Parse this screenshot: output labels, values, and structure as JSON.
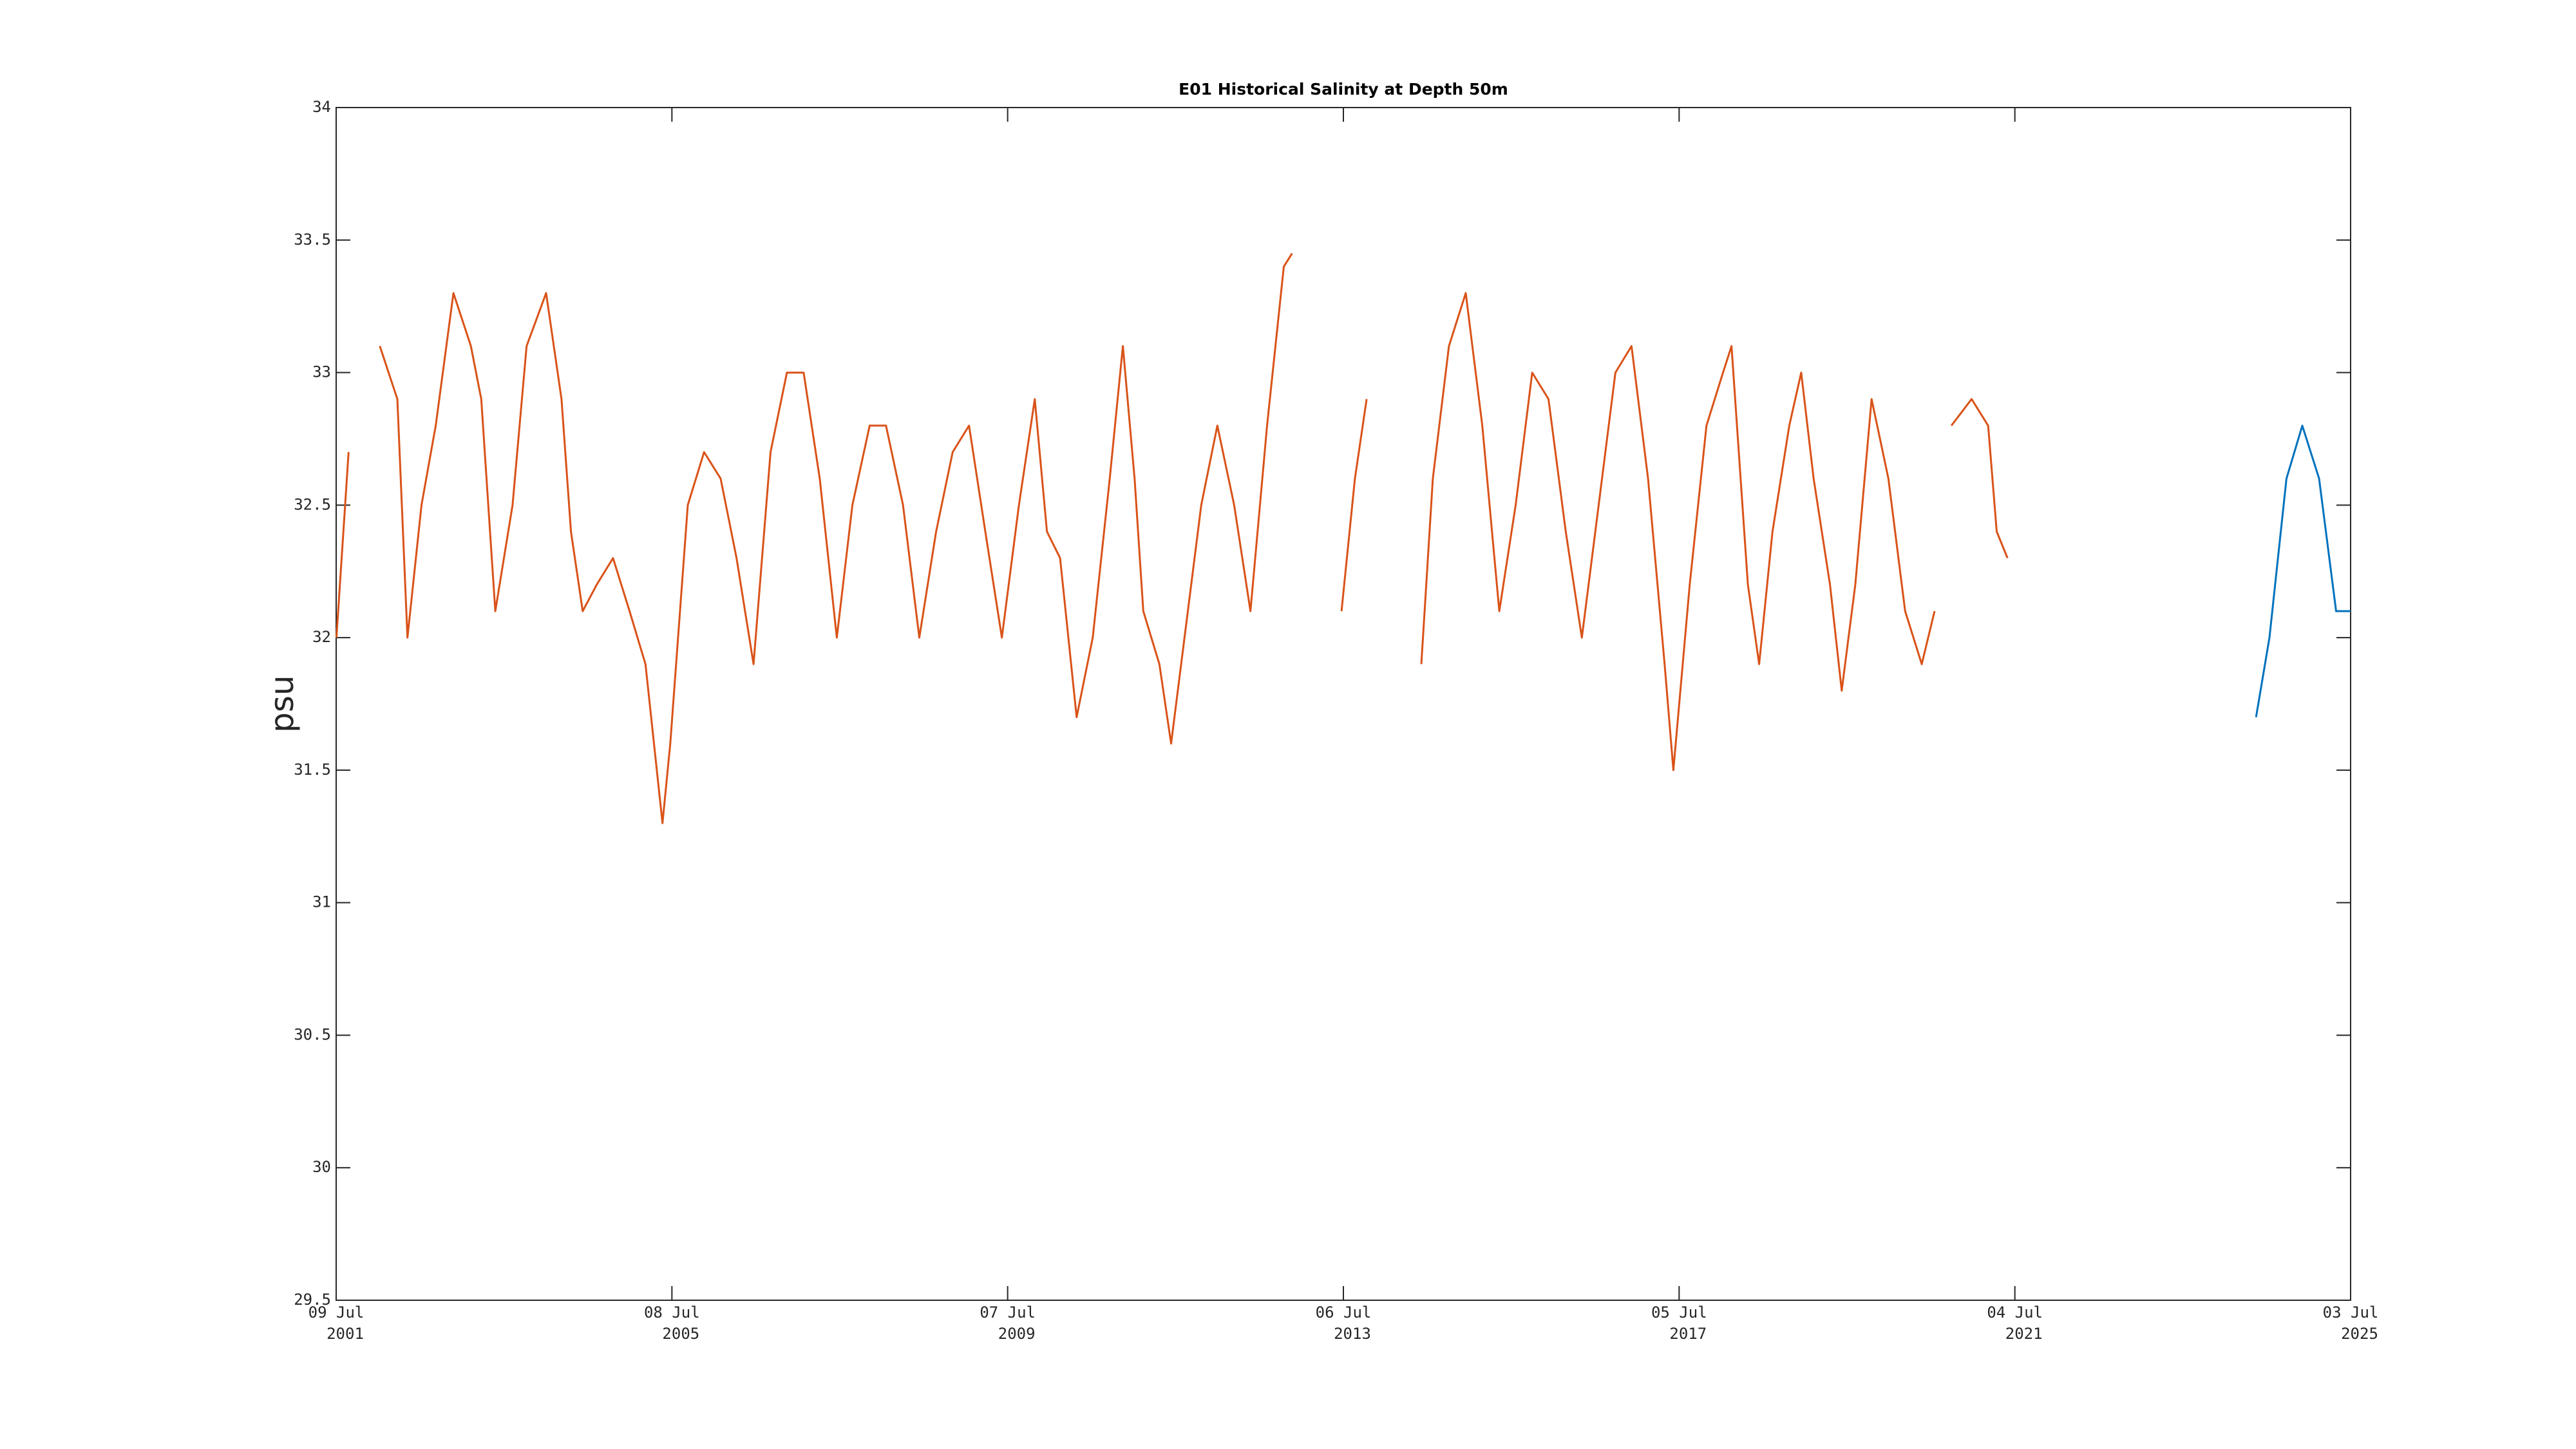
{
  "chart_data": {
    "type": "line",
    "title": "E01 Historical Salinity at Depth 50m",
    "ylabel": "psu",
    "xlim": [
      "2001-07-09",
      "2025-07-03"
    ],
    "xticks": [
      {
        "value": "2001-07-09",
        "label": [
          "09 Jul",
          "2001"
        ]
      },
      {
        "value": "2005-07-08",
        "label": [
          "08 Jul",
          "2005"
        ]
      },
      {
        "value": "2009-07-07",
        "label": [
          "07 Jul",
          "2009"
        ]
      },
      {
        "value": "2013-07-06",
        "label": [
          "06 Jul",
          "2013"
        ]
      },
      {
        "value": "2017-07-05",
        "label": [
          "05 Jul",
          "2017"
        ]
      },
      {
        "value": "2021-07-04",
        "label": [
          "04 Jul",
          "2021"
        ]
      },
      {
        "value": "2025-07-03",
        "label": [
          "03 Jul",
          "2025"
        ]
      }
    ],
    "ylim": [
      29.5,
      34
    ],
    "yticks": [
      29.5,
      30,
      30.5,
      31,
      31.5,
      32,
      32.5,
      33,
      33.5,
      34
    ],
    "grid": false,
    "series": [
      {
        "color": "#d95319",
        "x": [
          "2001-07-10",
          "2001-09-01",
          "2001-11-01",
          "2002-01-15",
          "2002-04-01",
          "2002-05-15",
          "2002-07-15",
          "2002-09-15",
          "2002-12-01",
          "2003-02-15",
          "2003-04-01",
          "2003-06-01",
          "2003-08-15",
          "2003-10-15",
          "2004-01-08",
          "2004-03-15",
          "2004-04-25",
          "2004-06-15",
          "2004-08-15",
          "2004-10-25",
          "2005-01-05",
          "2005-03-15",
          "2005-05-28",
          "2005-07-01",
          "2005-09-15",
          "2005-11-25",
          "2006-02-05",
          "2006-04-15",
          "2006-06-28",
          "2006-09-10",
          "2006-11-20",
          "2007-02-01",
          "2007-04-12",
          "2007-06-25",
          "2007-09-01",
          "2007-11-15",
          "2008-01-25",
          "2008-04-08",
          "2008-06-18",
          "2008-08-30",
          "2008-11-10",
          "2009-01-20",
          "2009-04-01",
          "2009-06-12",
          "2009-08-25",
          "2009-11-02",
          "2009-12-25",
          "2010-02-20",
          "2010-05-03",
          "2010-07-12",
          "2010-09-24",
          "2010-11-20",
          "2011-01-10",
          "2011-02-17",
          "2011-04-28",
          "2011-06-18",
          "2011-08-15",
          "2011-10-27",
          "2012-01-05",
          "2012-03-18",
          "2012-05-28",
          "2012-08-08",
          "2012-10-20",
          "2012-11-25",
          "2013-03-01",
          "2013-06-28",
          "2013-08-25",
          "2013-10-15",
          "2014-02-01",
          "2014-06-10",
          "2014-07-30",
          "2014-10-08",
          "2014-12-20",
          "2015-03-02",
          "2015-05-15",
          "2015-07-25",
          "2015-10-05",
          "2015-12-15",
          "2016-02-28",
          "2016-05-08",
          "2016-07-20",
          "2016-10-01",
          "2016-12-10",
          "2017-02-20",
          "2017-05-03",
          "2017-06-10",
          "2017-08-20",
          "2017-11-01",
          "2018-01-12",
          "2018-02-18",
          "2018-04-30",
          "2018-06-18",
          "2018-08-15",
          "2018-10-27",
          "2018-12-18",
          "2019-02-10",
          "2019-04-22",
          "2019-06-12",
          "2019-08-10",
          "2019-10-20",
          "2020-01-01",
          "2020-03-14",
          "2020-05-25",
          "2020-07-20",
          "2020-09-01",
          "2020-10-01",
          "2020-12-28",
          "2021-03-10",
          "2021-04-16",
          "2021-06-02"
        ],
        "values": [
          32.0,
          32.7,
          null,
          33.1,
          32.9,
          32.0,
          32.5,
          32.8,
          33.3,
          33.1,
          32.9,
          32.1,
          32.5,
          33.1,
          33.3,
          32.9,
          32.4,
          32.1,
          32.2,
          32.3,
          32.1,
          31.9,
          31.3,
          31.6,
          32.5,
          32.7,
          32.6,
          32.3,
          31.9,
          32.7,
          33.0,
          33.0,
          32.6,
          32.0,
          32.5,
          32.8,
          32.8,
          32.5,
          32.0,
          32.4,
          32.7,
          32.8,
          32.4,
          32.0,
          32.5,
          32.9,
          32.4,
          32.3,
          31.7,
          32.0,
          32.6,
          33.1,
          32.6,
          32.1,
          31.9,
          31.6,
          32.0,
          32.5,
          32.8,
          32.5,
          32.1,
          32.8,
          33.4,
          33.45,
          null,
          32.1,
          32.6,
          32.9,
          null,
          31.9,
          32.6,
          33.1,
          33.3,
          32.8,
          32.1,
          32.5,
          33.0,
          32.9,
          32.4,
          32.0,
          32.5,
          33.0,
          33.1,
          32.6,
          31.9,
          31.5,
          32.2,
          32.8,
          33.0,
          33.1,
          32.2,
          31.9,
          32.4,
          32.8,
          33.0,
          32.6,
          32.2,
          31.8,
          32.2,
          32.9,
          32.6,
          32.1,
          31.9,
          32.1,
          null,
          32.8,
          32.9,
          32.8,
          32.4,
          32.3
        ]
      },
      {
        "color": "#0072bd",
        "x": [
          "2024-05-18",
          "2024-07-15",
          "2024-09-27",
          "2024-12-05",
          "2025-02-16",
          "2025-05-01",
          "2025-07-03"
        ],
        "values": [
          31.7,
          32.0,
          32.6,
          32.8,
          32.6,
          32.1,
          32.1
        ]
      }
    ]
  }
}
